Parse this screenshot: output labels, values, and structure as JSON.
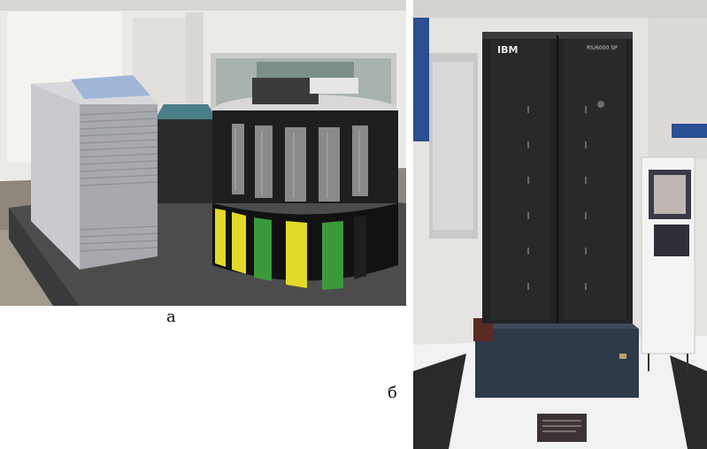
{
  "figure": {
    "panel_a": {
      "caption": "а",
      "colors": {
        "wall": "#eceae6",
        "floor": "#9b948a",
        "platform": "#4c4c4c",
        "cabinet": "#a7a9ae",
        "tower_body": "#1e1e1e",
        "yellow_panel": "#e2d92a",
        "green_panel": "#3a9a3a"
      }
    },
    "panel_b": {
      "caption": "б",
      "logo_text": "IBM",
      "model_badge_text": "RS/6000 SP",
      "colors": {
        "wall": "#e6e4e0",
        "tower": "#232325",
        "base": "#2e3a48",
        "floor": "#f2f2f2",
        "blue_banner": "#2a4f92"
      }
    }
  }
}
